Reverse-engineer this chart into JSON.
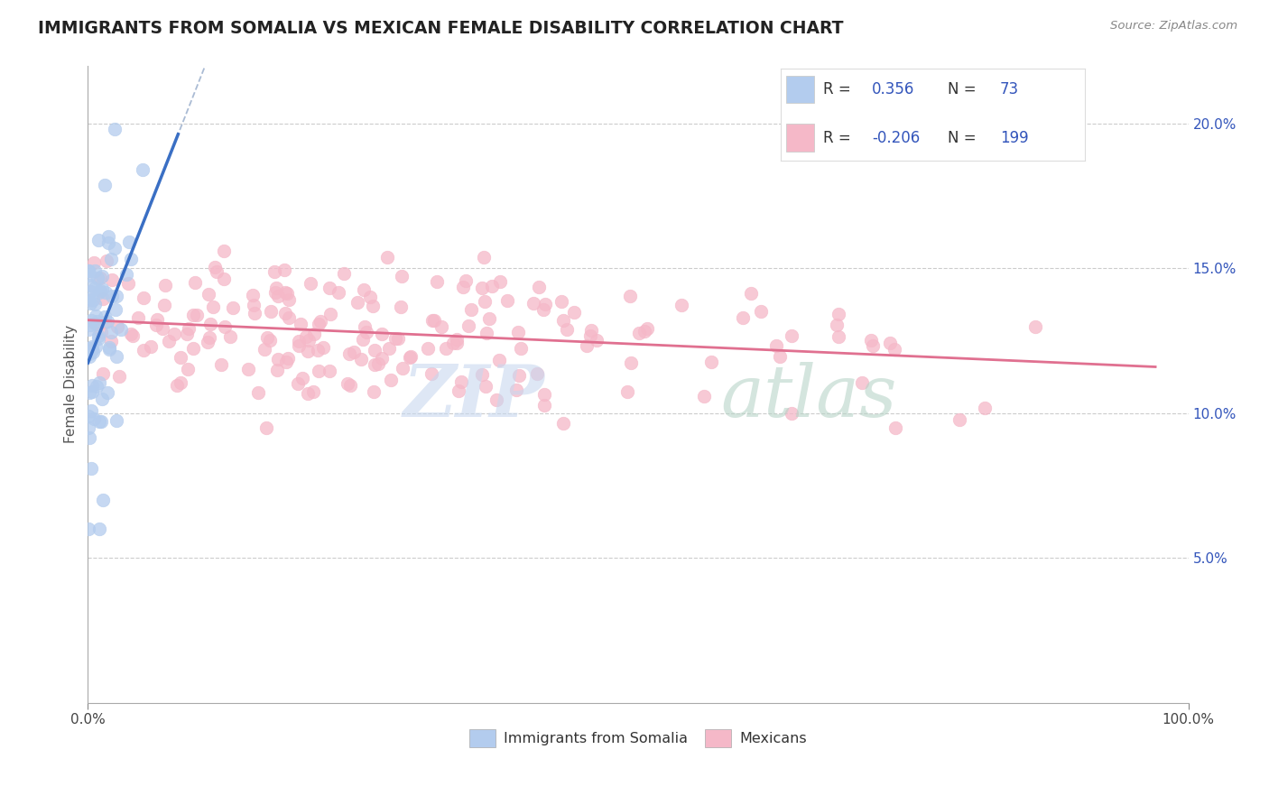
{
  "title": "IMMIGRANTS FROM SOMALIA VS MEXICAN FEMALE DISABILITY CORRELATION CHART",
  "source": "Source: ZipAtlas.com",
  "ylabel": "Female Disability",
  "xlim": [
    0,
    1.0
  ],
  "ylim": [
    0.0,
    0.22
  ],
  "yticks": [
    0.05,
    0.1,
    0.15,
    0.2
  ],
  "ytick_labels": [
    "5.0%",
    "10.0%",
    "15.0%",
    "20.0%"
  ],
  "xtick_left": "0.0%",
  "xtick_right": "100.0%",
  "r_somalia": 0.356,
  "n_somalia": 73,
  "r_mexicans": -0.206,
  "n_mexicans": 199,
  "somalia_color": "#b3ccee",
  "somalia_edge_color": "#7aaad4",
  "mexicans_color": "#f5b8c8",
  "mexicans_edge_color": "#e890a8",
  "somalia_line_color": "#3a6fc4",
  "mexicans_line_color": "#e07090",
  "dash_color": "#aabbd4",
  "watermark_zip_color": "#c8d8ef",
  "watermark_atlas_color": "#b8d4c8",
  "legend_label_somalia": "Immigrants from Somalia",
  "legend_label_mexicans": "Mexicans",
  "legend_r_color": "#3355bb",
  "legend_n_color": "#3355bb",
  "background_color": "#ffffff"
}
